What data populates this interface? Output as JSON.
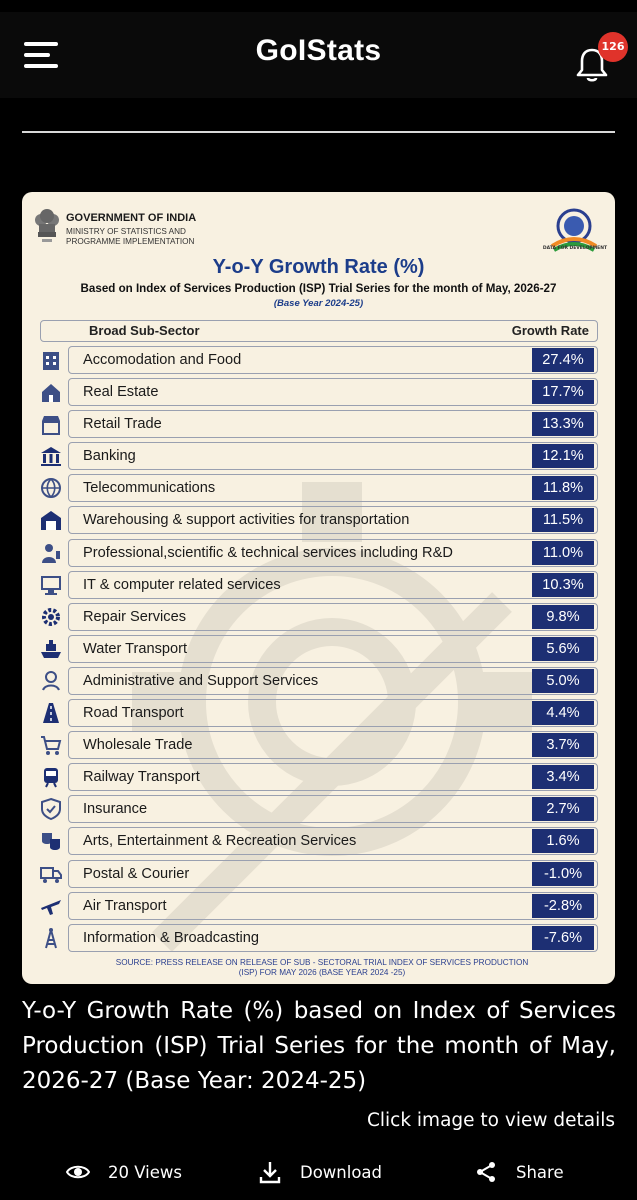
{
  "app": {
    "title": "GoIStats",
    "notification_count": "126"
  },
  "infographic": {
    "org_name": "GOVERNMENT OF INDIA",
    "ministry": "MINISTRY OF STATISTICS AND PROGRAMME IMPLEMENTATION",
    "logo_tagline": "DATA FOR DEVELOPMENT",
    "title": "Y-o-Y Growth Rate (%)",
    "subtitle": "Based on Index of Services Production (ISP) Trial Series for the month of May, 2026-27",
    "base_year": "(Base Year 2024-25)",
    "col_sector": "Broad Sub-Sector",
    "col_rate": "Growth Rate",
    "rows": [
      {
        "icon": "hotel-icon",
        "label": "Accomodation and Food",
        "value": "27.4%"
      },
      {
        "icon": "real-estate-icon",
        "label": "Real Estate",
        "value": "17.7%"
      },
      {
        "icon": "shop-icon",
        "label": "Retail Trade",
        "value": "13.3%"
      },
      {
        "icon": "bank-icon",
        "label": "Banking",
        "value": "12.1%"
      },
      {
        "icon": "globe-icon",
        "label": "Telecommunications",
        "value": "11.8%"
      },
      {
        "icon": "warehouse-icon",
        "label": "Warehousing & support activities for transportation",
        "value": "11.5%"
      },
      {
        "icon": "scientist-icon",
        "label": "Professional,scientific & technical services including R&D",
        "value": "11.0%"
      },
      {
        "icon": "computer-icon",
        "label": "IT & computer related services",
        "value": "10.3%"
      },
      {
        "icon": "gear-wrench-icon",
        "label": "Repair Services",
        "value": "9.8%"
      },
      {
        "icon": "ship-icon",
        "label": "Water Transport",
        "value": "5.6%"
      },
      {
        "icon": "support-icon",
        "label": "Administrative and Support Services",
        "value": "5.0%"
      },
      {
        "icon": "road-icon",
        "label": "Road Transport",
        "value": "4.4%"
      },
      {
        "icon": "cart-icon",
        "label": "Wholesale Trade",
        "value": "3.7%"
      },
      {
        "icon": "train-icon",
        "label": "Railway Transport",
        "value": "3.4%"
      },
      {
        "icon": "shield-icon",
        "label": "Insurance",
        "value": "2.7%"
      },
      {
        "icon": "theatre-masks-icon",
        "label": "Arts, Entertainment & Recreation Services",
        "value": "1.6%"
      },
      {
        "icon": "truck-icon",
        "label": "Postal & Courier",
        "value": "-1.0%"
      },
      {
        "icon": "airplane-icon",
        "label": "Air Transport",
        "value": "-2.8%"
      },
      {
        "icon": "tower-icon",
        "label": "Information & Broadcasting",
        "value": "-7.6%"
      }
    ],
    "source": "SOURCE: PRESS RELEASE ON RELEASE OF SUB - SECTORAL TRIAL INDEX OF SERVICES PRODUCTION (ISP) FOR MAY 2026 (BASE YEAR 2024 -25)"
  },
  "post": {
    "caption": "Y-o-Y Growth Rate (%) based on Index of Services Production (ISP) Trial Series for the month of May, 2026-27 (Base Year: 2024-25)",
    "cta": "Click image to view details",
    "views": "20 Views",
    "download": "Download",
    "share": "Share"
  },
  "colors": {
    "value_box": "#1d2f73",
    "title_blue": "#1c3d8a",
    "card_bg": "#f8f1e1",
    "badge": "#e0332b"
  }
}
